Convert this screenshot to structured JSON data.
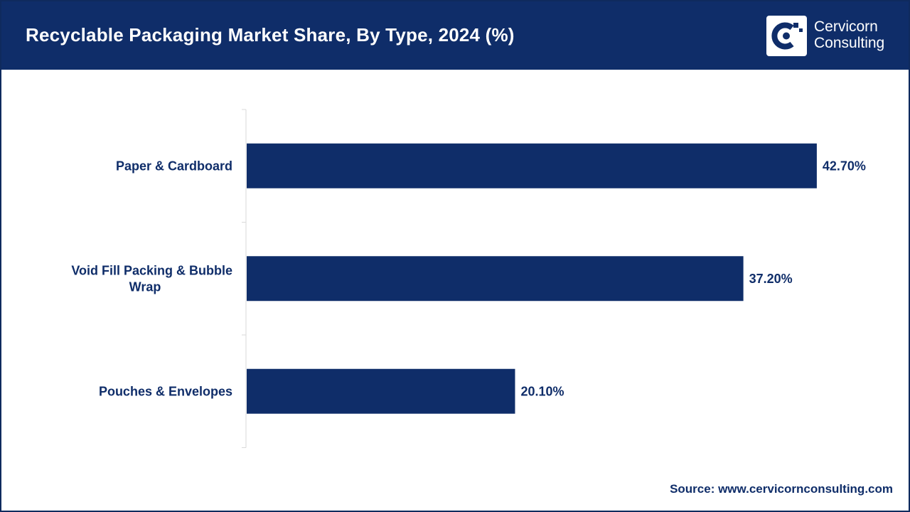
{
  "header": {
    "title": "Recyclable Packaging Market Share, By Type, 2024 (%)",
    "logo_line1": "Cervicorn",
    "logo_line2": "Consulting"
  },
  "footer": {
    "source": "Source: www.cervicornconsulting.com"
  },
  "colors": {
    "bar": "#0f2d69",
    "header": "#0f2d69",
    "text": "#0f2d69",
    "axis": "#d9d9d9"
  },
  "chart_data": {
    "type": "bar",
    "orientation": "horizontal",
    "title": "Recyclable Packaging Market Share, By Type, 2024 (%)",
    "categories": [
      {
        "lines": [
          "Paper & Cardboard"
        ]
      },
      {
        "lines": [
          "Void Fill Packing & Bubble",
          "Wrap"
        ]
      },
      {
        "lines": [
          "Pouches & Envelopes"
        ]
      }
    ],
    "values": [
      42.7,
      37.2,
      20.1
    ],
    "value_labels": [
      "42.70%",
      "37.20%",
      "20.10%"
    ],
    "xlim": [
      0,
      45
    ],
    "grid": false,
    "legend": "none"
  }
}
